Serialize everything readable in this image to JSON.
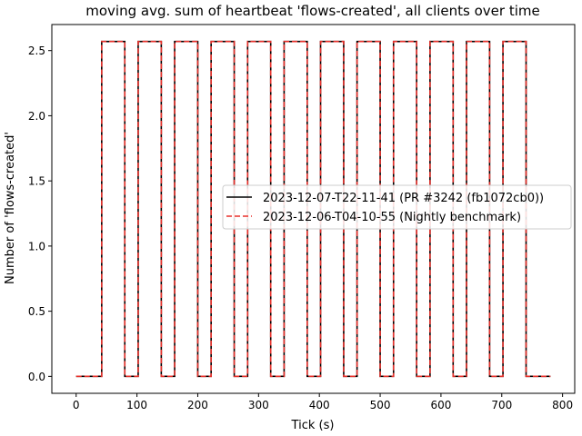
{
  "chart_data": {
    "type": "line",
    "title": "moving avg. sum of heartbeat 'flows-created', all clients over time",
    "xlabel": "Tick (s)",
    "ylabel": "Number of 'flows-created'",
    "xlim": [
      -40,
      820
    ],
    "ylim": [
      -0.13,
      2.7
    ],
    "xticks": [
      0,
      100,
      200,
      300,
      400,
      500,
      600,
      700,
      800
    ],
    "xtick_labels": [
      "0",
      "100",
      "200",
      "300",
      "400",
      "500",
      "600",
      "700",
      "800"
    ],
    "yticks": [
      0.0,
      0.5,
      1.0,
      1.5,
      2.0,
      2.5
    ],
    "ytick_labels": [
      "0.0",
      "0.5",
      "1.0",
      "1.5",
      "2.0",
      "2.5"
    ],
    "grid": false,
    "legend_position": "center-right",
    "series": [
      {
        "name": "2023-12-07-T22-11-41 (PR #3242 (fb1072cb0))",
        "color": "#000000",
        "style": "solid",
        "x": [
          0,
          42,
          42,
          80,
          80,
          102,
          102,
          140,
          140,
          162,
          162,
          200,
          200,
          222,
          222,
          260,
          260,
          282,
          282,
          320,
          320,
          342,
          342,
          380,
          380,
          402,
          402,
          440,
          440,
          462,
          462,
          500,
          500,
          522,
          522,
          560,
          560,
          582,
          582,
          620,
          620,
          642,
          642,
          680,
          680,
          702,
          702,
          740,
          740,
          780
        ],
        "y": [
          0,
          0,
          2.57,
          2.57,
          0,
          0,
          2.57,
          2.57,
          0,
          0,
          2.57,
          2.57,
          0,
          0,
          2.57,
          2.57,
          0,
          0,
          2.57,
          2.57,
          0,
          0,
          2.57,
          2.57,
          0,
          0,
          2.57,
          2.57,
          0,
          0,
          2.57,
          2.57,
          0,
          0,
          2.57,
          2.57,
          0,
          0,
          2.57,
          2.57,
          0,
          0,
          2.57,
          2.57,
          0,
          0,
          2.57,
          2.57,
          0,
          0
        ]
      },
      {
        "name": "2023-12-06-T04-10-55 (Nightly benchmark)",
        "color": "#e8312b",
        "style": "dashed",
        "x": [
          0,
          42,
          42,
          80,
          80,
          102,
          102,
          140,
          140,
          162,
          162,
          200,
          200,
          222,
          222,
          260,
          260,
          282,
          282,
          320,
          320,
          342,
          342,
          380,
          380,
          402,
          402,
          440,
          440,
          462,
          462,
          500,
          500,
          522,
          522,
          560,
          560,
          582,
          582,
          620,
          620,
          642,
          642,
          680,
          680,
          702,
          702,
          740,
          740,
          780
        ],
        "y": [
          0,
          0,
          2.57,
          2.57,
          0,
          0,
          2.57,
          2.57,
          0,
          0,
          2.57,
          2.57,
          0,
          0,
          2.57,
          2.57,
          0,
          0,
          2.57,
          2.57,
          0,
          0,
          2.57,
          2.57,
          0,
          0,
          2.57,
          2.57,
          0,
          0,
          2.57,
          2.57,
          0,
          0,
          2.57,
          2.57,
          0,
          0,
          2.57,
          2.57,
          0,
          0,
          2.57,
          2.57,
          0,
          0,
          2.57,
          2.57,
          0,
          0
        ]
      }
    ]
  }
}
